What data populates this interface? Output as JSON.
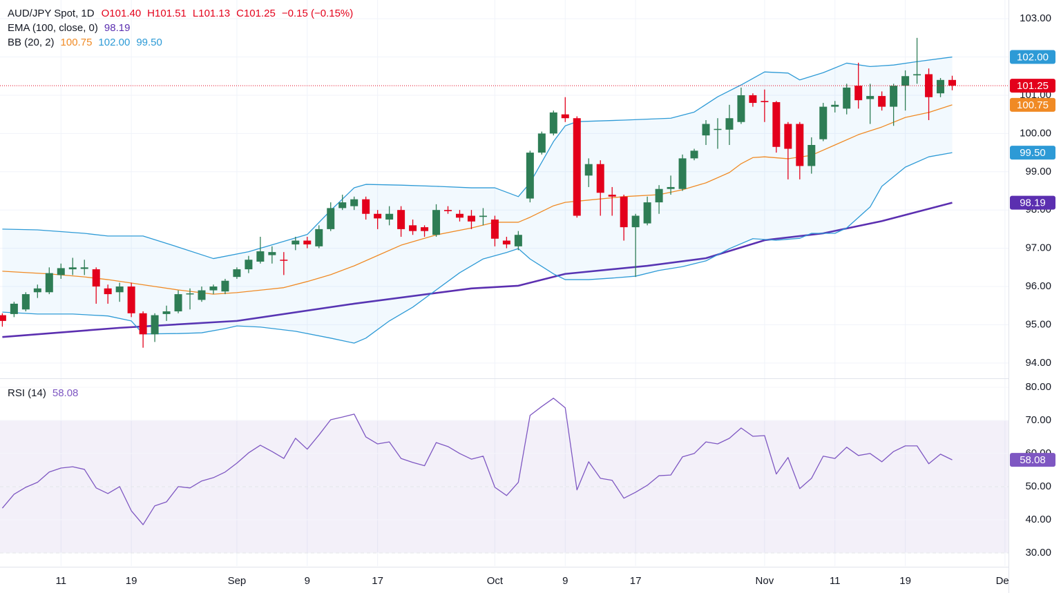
{
  "chart_data": [
    {
      "type": "candlestick",
      "title": "AUD/JPY Spot, 1D",
      "ohlc_labels": [
        "O101.40",
        "H101.51",
        "L101.13",
        "C101.25",
        "−0.15 (−0.15%)"
      ],
      "up_color": "#2e7d55",
      "down_color": "#e3001b",
      "last_label": "101.25",
      "xlim": [
        -0.2,
        85.8
      ],
      "xticks": [
        {
          "value": 5,
          "label": "11"
        },
        {
          "value": 11,
          "label": "19"
        },
        {
          "value": 20,
          "label": "Sep"
        },
        {
          "value": 26,
          "label": "9"
        },
        {
          "value": 32,
          "label": "17"
        },
        {
          "value": 42,
          "label": "Oct"
        },
        {
          "value": 48,
          "label": "9"
        },
        {
          "value": 54,
          "label": "17"
        },
        {
          "value": 65,
          "label": "Nov"
        },
        {
          "value": 71,
          "label": "11"
        },
        {
          "value": 77,
          "label": "19"
        },
        {
          "value": 85.5,
          "label": "Dec"
        }
      ],
      "ylim": [
        93.6,
        103.49
      ],
      "yticks": [
        {
          "value": 94,
          "label": "94.00"
        },
        {
          "value": 95,
          "label": "95.00"
        },
        {
          "value": 96,
          "label": "96.00"
        },
        {
          "value": 97,
          "label": "97.00"
        },
        {
          "value": 98,
          "label": "98.00"
        },
        {
          "value": 99,
          "label": "99.00"
        },
        {
          "value": 100,
          "label": "100.00"
        },
        {
          "value": 101,
          "label": "101.00"
        },
        {
          "value": 102,
          "label": "102.00"
        },
        {
          "value": 103,
          "label": "103.00"
        }
      ],
      "grid": true,
      "open": [
        95.25,
        95.28,
        95.4,
        95.85,
        95.85,
        96.3,
        96.45,
        96.46,
        96.45,
        95.95,
        95.85,
        96.0,
        95.3,
        94.75,
        95.28,
        95.35,
        95.8,
        95.65,
        95.9,
        95.87,
        96.25,
        96.45,
        96.65,
        96.82,
        96.7,
        97.1,
        97.2,
        97.05,
        97.5,
        98.05,
        98.1,
        98.28,
        97.9,
        97.75,
        98.0,
        97.6,
        97.55,
        97.35,
        98.0,
        97.9,
        97.85,
        97.82,
        97.75,
        97.2,
        97.05,
        98.3,
        99.5,
        100.0,
        100.5,
        100.4,
        98.9,
        99.2,
        98.4,
        98.35,
        97.55,
        97.65,
        98.2,
        98.55,
        98.55,
        99.35,
        99.95,
        100.1,
        100.1,
        100.3,
        101.0,
        100.85,
        100.82,
        100.25,
        100.25,
        99.15,
        99.85,
        100.7,
        100.65,
        101.25,
        100.9,
        100.98,
        100.7,
        101.25,
        101.52,
        101.55,
        101.05,
        101.4
      ],
      "high": [
        95.3,
        95.6,
        95.85,
        96.05,
        96.5,
        96.6,
        96.75,
        96.7,
        96.5,
        96.05,
        96.1,
        96.1,
        95.35,
        95.3,
        95.5,
        95.9,
        95.95,
        96.0,
        96.05,
        96.2,
        96.5,
        96.8,
        97.3,
        97.05,
        96.9,
        97.3,
        97.3,
        97.6,
        98.2,
        98.4,
        98.35,
        98.35,
        98.0,
        98.1,
        98.1,
        97.75,
        97.6,
        98.15,
        98.1,
        98.0,
        98.0,
        98.05,
        97.85,
        97.3,
        97.45,
        99.55,
        100.05,
        100.6,
        100.95,
        100.45,
        99.35,
        99.3,
        98.6,
        98.4,
        97.9,
        98.35,
        98.65,
        98.9,
        99.45,
        99.6,
        100.35,
        100.4,
        100.75,
        101.2,
        101.05,
        101.15,
        100.85,
        100.3,
        100.3,
        99.9,
        100.8,
        100.85,
        101.3,
        101.85,
        101.3,
        101.1,
        101.3,
        101.65,
        102.5,
        101.7,
        101.45,
        101.51
      ],
      "low": [
        94.95,
        95.2,
        95.35,
        95.7,
        95.8,
        96.2,
        96.3,
        96.3,
        95.55,
        95.55,
        95.6,
        95.2,
        94.4,
        94.55,
        95.1,
        95.3,
        95.4,
        95.6,
        95.8,
        95.8,
        96.2,
        96.35,
        96.6,
        96.6,
        96.3,
        96.95,
        97.0,
        97.0,
        97.45,
        98.0,
        98.0,
        97.75,
        97.5,
        97.6,
        97.3,
        97.35,
        97.3,
        97.3,
        97.9,
        97.7,
        97.5,
        97.6,
        97.05,
        97.0,
        96.95,
        98.2,
        99.45,
        99.95,
        100.3,
        97.8,
        98.6,
        97.85,
        97.85,
        97.2,
        96.25,
        97.6,
        97.9,
        98.4,
        98.5,
        99.3,
        99.7,
        99.6,
        99.7,
        100.25,
        100.7,
        100.3,
        99.5,
        98.8,
        98.8,
        98.95,
        99.8,
        100.55,
        100.5,
        100.65,
        100.25,
        100.6,
        100.2,
        100.6,
        101.3,
        100.35,
        100.95,
        101.13
      ],
      "close": [
        95.1,
        95.55,
        95.8,
        95.95,
        96.35,
        96.48,
        96.5,
        96.5,
        96.0,
        95.8,
        96.0,
        95.3,
        94.75,
        95.25,
        95.35,
        95.8,
        95.82,
        95.9,
        96.0,
        96.15,
        96.45,
        96.7,
        96.92,
        96.9,
        96.68,
        97.2,
        97.1,
        97.5,
        98.05,
        98.2,
        98.28,
        97.9,
        97.78,
        97.9,
        97.5,
        97.45,
        97.45,
        98.0,
        97.97,
        97.8,
        97.7,
        97.85,
        97.25,
        97.1,
        97.35,
        99.5,
        100.0,
        100.55,
        100.4,
        97.85,
        99.2,
        98.45,
        98.35,
        97.55,
        97.85,
        98.2,
        98.55,
        98.6,
        99.35,
        99.55,
        100.25,
        100.12,
        100.4,
        101.0,
        100.8,
        100.82,
        99.65,
        99.6,
        99.15,
        99.7,
        100.7,
        100.75,
        101.2,
        100.87,
        100.98,
        100.7,
        101.25,
        101.5,
        101.55,
        100.95,
        101.4,
        101.25
      ],
      "indicators": [
        {
          "label": "EMA (100, close, 0)",
          "lines": [
            {
              "color": "#5b2fb0",
              "line_width": 2.6,
              "value_label": "98.19",
              "x": [
                0,
                10,
                20,
                30,
                40,
                44,
                48,
                55,
                60,
                65,
                70,
                75,
                81
              ],
              "values": [
                94.68,
                94.92,
                95.1,
                95.55,
                95.95,
                96.02,
                96.33,
                96.54,
                96.74,
                97.21,
                97.39,
                97.71,
                98.19
              ]
            }
          ]
        },
        {
          "label": "BB (20, 2)",
          "fill": "rgba(33,150,243,0.06)",
          "lines": [
            {
              "color": "#f08a24",
              "line_width": 1.3,
              "value_label": "100.75",
              "x": [
                0,
                4,
                7,
                9,
                11,
                13,
                15,
                18,
                20,
                24,
                26,
                28,
                30,
                32,
                34,
                37,
                40,
                42,
                44,
                45,
                47,
                48,
                50,
                53,
                56,
                58,
                60,
                62,
                63,
                64,
                65,
                67,
                69,
                71,
                73,
                75,
                77,
                79,
                81
              ],
              "values": [
                96.4,
                96.33,
                96.25,
                96.18,
                96.09,
                96.0,
                95.91,
                95.8,
                95.84,
                95.97,
                96.13,
                96.31,
                96.54,
                96.81,
                97.08,
                97.35,
                97.53,
                97.68,
                97.68,
                97.81,
                98.11,
                98.2,
                98.26,
                98.35,
                98.4,
                98.53,
                98.71,
                98.98,
                99.21,
                99.37,
                99.39,
                99.34,
                99.43,
                99.7,
                99.97,
                100.17,
                100.42,
                100.55,
                100.75
              ]
            },
            {
              "color": "#2d9ad6",
              "line_width": 1.3,
              "value_label": "102.00",
              "x": [
                0,
                3,
                7,
                9,
                12,
                15,
                18,
                21,
                24,
                26,
                28,
                30,
                31,
                34,
                37,
                40,
                42,
                44,
                45,
                47,
                48,
                49,
                53,
                57,
                59,
                61,
                63,
                65,
                67,
                68,
                70,
                72,
                74,
                76,
                78,
                81
              ],
              "values": [
                97.5,
                97.48,
                97.39,
                97.32,
                97.32,
                97.03,
                96.73,
                96.91,
                97.18,
                97.36,
                97.99,
                98.58,
                98.67,
                98.65,
                98.62,
                98.58,
                98.58,
                98.35,
                98.71,
                99.79,
                100.2,
                100.31,
                100.35,
                100.4,
                100.56,
                100.96,
                101.27,
                101.61,
                101.58,
                101.4,
                101.59,
                101.84,
                101.75,
                101.79,
                101.88,
                102.0
              ]
            },
            {
              "color": "#2d9ad6",
              "line_width": 1.3,
              "value_label": "99.50",
              "x": [
                0,
                3,
                6,
                9,
                11,
                12,
                15,
                17,
                19,
                20,
                22,
                25,
                28,
                30,
                31,
                33,
                35,
                37,
                39,
                41,
                43,
                44,
                45,
                47,
                48,
                50,
                52,
                54,
                56,
                58,
                60,
                62,
                64,
                66,
                68,
                69,
                71,
                72,
                74,
                75,
                77,
                79,
                81
              ],
              "values": [
                95.33,
                95.28,
                95.28,
                95.23,
                95.1,
                94.76,
                94.77,
                94.79,
                94.9,
                94.97,
                94.94,
                94.83,
                94.65,
                94.52,
                94.65,
                95.1,
                95.46,
                95.91,
                96.36,
                96.72,
                96.89,
                96.99,
                96.72,
                96.33,
                96.18,
                96.18,
                96.22,
                96.27,
                96.42,
                96.52,
                96.67,
                96.99,
                97.25,
                97.21,
                97.26,
                97.39,
                97.39,
                97.53,
                98.08,
                98.62,
                99.12,
                99.39,
                99.5
              ]
            }
          ]
        }
      ]
    },
    {
      "type": "line",
      "label": "RSI (14)",
      "value_label": "58.08",
      "color": "#7e57c2",
      "ylim": [
        26,
        82.5
      ],
      "yticks": [
        {
          "value": 30,
          "label": "30.00"
        },
        {
          "value": 40,
          "label": "40.00"
        },
        {
          "value": 50,
          "label": "50.00"
        },
        {
          "value": 60,
          "label": "60.00"
        },
        {
          "value": 70,
          "label": "70.00"
        },
        {
          "value": 80,
          "label": "80.00"
        }
      ],
      "levels": [
        70,
        50,
        30
      ],
      "band_fill": "rgba(126,87,194,0.09)",
      "values": [
        43.5,
        47.7,
        49.8,
        51.3,
        54.4,
        55.6,
        56.0,
        55.2,
        49.6,
        47.9,
        50.0,
        42.7,
        38.5,
        44.2,
        45.4,
        50.0,
        49.6,
        51.7,
        52.7,
        54.4,
        57.1,
        60.2,
        62.5,
        60.6,
        58.5,
        64.6,
        61.3,
        65.6,
        70.2,
        71.0,
        71.9,
        65.0,
        62.9,
        63.5,
        58.5,
        57.3,
        56.3,
        63.3,
        62.1,
        60.0,
        58.3,
        59.2,
        49.8,
        47.3,
        51.3,
        71.5,
        74.2,
        76.7,
        73.8,
        49.0,
        57.5,
        52.5,
        51.9,
        46.5,
        48.3,
        50.4,
        53.3,
        53.5,
        59.0,
        60.0,
        63.5,
        62.9,
        64.6,
        67.7,
        65.2,
        65.4,
        53.8,
        58.8,
        49.4,
        52.5,
        59.2,
        58.5,
        61.9,
        59.4,
        60.0,
        57.5,
        60.6,
        62.3,
        62.3,
        56.9,
        59.8,
        58.08
      ]
    }
  ]
}
